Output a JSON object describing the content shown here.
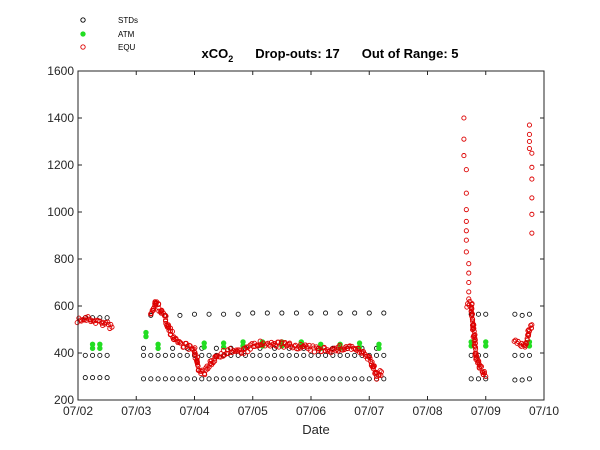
{
  "chart_data": {
    "type": "scatter",
    "title": {
      "main": "xCO",
      "subscript": "2",
      "dropouts_label": "Drop-outs: 17",
      "out_of_range_label": "Out of Range: 5"
    },
    "xlabel": "Date",
    "ylabel": "",
    "xlim": [
      "07/02",
      "07/10"
    ],
    "ylim": [
      200,
      1600
    ],
    "x_ticks": [
      "07/02",
      "07/03",
      "07/04",
      "07/05",
      "07/06",
      "07/07",
      "07/08",
      "07/09",
      "07/10"
    ],
    "y_ticks": [
      200,
      400,
      600,
      800,
      1000,
      1200,
      1400,
      1600
    ],
    "grid": false,
    "legend_position": "top-left",
    "colors": {
      "STDs": "#000000",
      "ATM": "#22dd22",
      "EQU": "#dd0000"
    },
    "series": [
      {
        "name": "STDs",
        "marker": "open-circle",
        "points": [
          [
            "07/02 03:00",
            295
          ],
          [
            "07/02 06:00",
            295
          ],
          [
            "07/02 09:00",
            295
          ],
          [
            "07/02 12:00",
            295
          ],
          [
            "07/02 03:00",
            390
          ],
          [
            "07/02 06:00",
            390
          ],
          [
            "07/02 09:00",
            390
          ],
          [
            "07/02 12:00",
            390
          ],
          [
            "07/02 03:00",
            550
          ],
          [
            "07/02 06:00",
            550
          ],
          [
            "07/02 09:00",
            550
          ],
          [
            "07/02 12:00",
            550
          ],
          [
            "07/03 03:00",
            290
          ],
          [
            "07/03 06:00",
            290
          ],
          [
            "07/03 09:00",
            290
          ],
          [
            "07/03 12:00",
            290
          ],
          [
            "07/03 15:00",
            290
          ],
          [
            "07/03 18:00",
            290
          ],
          [
            "07/03 21:00",
            290
          ],
          [
            "07/04 00:00",
            290
          ],
          [
            "07/04 03:00",
            290
          ],
          [
            "07/04 06:00",
            290
          ],
          [
            "07/04 09:00",
            290
          ],
          [
            "07/04 12:00",
            290
          ],
          [
            "07/04 15:00",
            290
          ],
          [
            "07/04 18:00",
            290
          ],
          [
            "07/04 21:00",
            290
          ],
          [
            "07/05 00:00",
            290
          ],
          [
            "07/05 03:00",
            290
          ],
          [
            "07/05 06:00",
            290
          ],
          [
            "07/05 09:00",
            290
          ],
          [
            "07/05 12:00",
            290
          ],
          [
            "07/05 15:00",
            290
          ],
          [
            "07/05 18:00",
            290
          ],
          [
            "07/05 21:00",
            290
          ],
          [
            "07/06 00:00",
            290
          ],
          [
            "07/06 03:00",
            290
          ],
          [
            "07/06 06:00",
            290
          ],
          [
            "07/06 09:00",
            290
          ],
          [
            "07/06 12:00",
            290
          ],
          [
            "07/06 15:00",
            290
          ],
          [
            "07/06 18:00",
            290
          ],
          [
            "07/06 21:00",
            290
          ],
          [
            "07/07 00:00",
            290
          ],
          [
            "07/07 03:00",
            290
          ],
          [
            "07/07 06:00",
            290
          ],
          [
            "07/03 03:00",
            390
          ],
          [
            "07/03 06:00",
            390
          ],
          [
            "07/03 09:00",
            390
          ],
          [
            "07/03 12:00",
            390
          ],
          [
            "07/03 15:00",
            390
          ],
          [
            "07/03 18:00",
            390
          ],
          [
            "07/03 21:00",
            390
          ],
          [
            "07/04 00:00",
            390
          ],
          [
            "07/04 03:00",
            390
          ],
          [
            "07/04 06:00",
            390
          ],
          [
            "07/04 09:00",
            390
          ],
          [
            "07/04 12:00",
            390
          ],
          [
            "07/04 15:00",
            390
          ],
          [
            "07/04 18:00",
            390
          ],
          [
            "07/04 21:00",
            390
          ],
          [
            "07/05 00:00",
            390
          ],
          [
            "07/05 03:00",
            390
          ],
          [
            "07/05 06:00",
            390
          ],
          [
            "07/05 09:00",
            390
          ],
          [
            "07/05 12:00",
            390
          ],
          [
            "07/05 15:00",
            390
          ],
          [
            "07/05 18:00",
            390
          ],
          [
            "07/05 21:00",
            390
          ],
          [
            "07/06 00:00",
            390
          ],
          [
            "07/06 03:00",
            390
          ],
          [
            "07/06 06:00",
            390
          ],
          [
            "07/06 09:00",
            390
          ],
          [
            "07/06 12:00",
            390
          ],
          [
            "07/06 15:00",
            390
          ],
          [
            "07/06 18:00",
            390
          ],
          [
            "07/06 21:00",
            390
          ],
          [
            "07/07 00:00",
            390
          ],
          [
            "07/07 03:00",
            390
          ],
          [
            "07/07 06:00",
            390
          ],
          [
            "07/03 03:00",
            420
          ],
          [
            "07/03 09:00",
            420
          ],
          [
            "07/03 15:00",
            420
          ],
          [
            "07/03 21:00",
            420
          ],
          [
            "07/04 03:00",
            420
          ],
          [
            "07/04 09:00",
            420
          ],
          [
            "07/04 15:00",
            420
          ],
          [
            "07/04 21:00",
            420
          ],
          [
            "07/05 03:00",
            420
          ],
          [
            "07/05 09:00",
            420
          ],
          [
            "07/05 15:00",
            420
          ],
          [
            "07/05 21:00",
            420
          ],
          [
            "07/06 03:00",
            420
          ],
          [
            "07/06 09:00",
            420
          ],
          [
            "07/06 15:00",
            420
          ],
          [
            "07/06 21:00",
            420
          ],
          [
            "07/07 03:00",
            420
          ],
          [
            "07/03 06:00",
            560
          ],
          [
            "07/03 12:00",
            560
          ],
          [
            "07/03 18:00",
            560
          ],
          [
            "07/04 00:00",
            565
          ],
          [
            "07/04 06:00",
            565
          ],
          [
            "07/04 12:00",
            565
          ],
          [
            "07/04 18:00",
            565
          ],
          [
            "07/05 00:00",
            570
          ],
          [
            "07/05 06:00",
            570
          ],
          [
            "07/05 12:00",
            570
          ],
          [
            "07/05 18:00",
            570
          ],
          [
            "07/06 00:00",
            570
          ],
          [
            "07/06 06:00",
            570
          ],
          [
            "07/06 12:00",
            570
          ],
          [
            "07/06 18:00",
            570
          ],
          [
            "07/07 00:00",
            570
          ],
          [
            "07/07 06:00",
            570
          ],
          [
            "07/08 18:00",
            290
          ],
          [
            "07/08 21:00",
            290
          ],
          [
            "07/09 00:00",
            290
          ],
          [
            "07/09 12:00",
            285
          ],
          [
            "07/09 15:00",
            285
          ],
          [
            "07/09 18:00",
            290
          ],
          [
            "07/08 18:00",
            390
          ],
          [
            "07/08 21:00",
            390
          ],
          [
            "07/09 00:00",
            390
          ],
          [
            "07/09 12:00",
            390
          ],
          [
            "07/09 15:00",
            390
          ],
          [
            "07/09 18:00",
            390
          ],
          [
            "07/08 18:00",
            565
          ],
          [
            "07/08 21:00",
            565
          ],
          [
            "07/09 00:00",
            565
          ],
          [
            "07/09 12:00",
            565
          ],
          [
            "07/09 15:00",
            560
          ],
          [
            "07/09 18:00",
            565
          ]
        ]
      },
      {
        "name": "ATM",
        "marker": "filled-circle",
        "points": [
          [
            "07/02 06:00",
            420
          ],
          [
            "07/02 09:00",
            420
          ],
          [
            "07/03 04:00",
            470
          ],
          [
            "07/03 09:00",
            420
          ],
          [
            "07/04 04:00",
            425
          ],
          [
            "07/04 12:00",
            425
          ],
          [
            "07/04 20:00",
            430
          ],
          [
            "07/05 04:00",
            430
          ],
          [
            "07/05 12:00",
            430
          ],
          [
            "07/05 20:00",
            430
          ],
          [
            "07/06 04:00",
            420
          ],
          [
            "07/06 12:00",
            420
          ],
          [
            "07/06 20:00",
            425
          ],
          [
            "07/07 04:00",
            420
          ],
          [
            "07/08 18:00",
            430
          ],
          [
            "07/09 00:00",
            430
          ],
          [
            "07/09 18:00",
            430
          ]
        ]
      },
      {
        "name": "EQU",
        "marker": "open-circle",
        "segments": [
          [
            [
              "07/02 00:00",
              540
            ],
            [
              "07/02 03:00",
              545
            ],
            [
              "07/02 06:00",
              540
            ],
            [
              "07/02 09:00",
              530
            ],
            [
              "07/02 12:00",
              520
            ],
            [
              "07/02 14:00",
              510
            ]
          ],
          [
            [
              "07/03 06:00",
              560
            ],
            [
              "07/03 08:00",
              620
            ],
            [
              "07/03 10:00",
              580
            ],
            [
              "07/03 12:00",
              550
            ],
            [
              "07/03 15:00",
              470
            ],
            [
              "07/03 18:00",
              440
            ],
            [
              "07/03 21:00",
              430
            ],
            [
              "07/04 00:00",
              410
            ],
            [
              "07/04 02:00",
              320
            ],
            [
              "07/04 04:00",
              320
            ],
            [
              "07/04 06:00",
              340
            ],
            [
              "07/04 09:00",
              390
            ],
            [
              "07/04 12:00",
              400
            ],
            [
              "07/04 15:00",
              410
            ],
            [
              "07/04 18:00",
              405
            ],
            [
              "07/04 21:00",
              410
            ],
            [
              "07/05 00:00",
              430
            ],
            [
              "07/05 03:00",
              440
            ],
            [
              "07/05 06:00",
              430
            ],
            [
              "07/05 09:00",
              440
            ],
            [
              "07/05 12:00",
              435
            ],
            [
              "07/05 15:00",
              430
            ],
            [
              "07/05 18:00",
              430
            ],
            [
              "07/05 21:00",
              425
            ],
            [
              "07/06 00:00",
              420
            ],
            [
              "07/06 03:00",
              410
            ],
            [
              "07/06 06:00",
              420
            ],
            [
              "07/06 09:00",
              410
            ],
            [
              "07/06 12:00",
              420
            ],
            [
              "07/06 15:00",
              425
            ],
            [
              "07/06 18:00",
              420
            ],
            [
              "07/06 21:00",
              400
            ],
            [
              "07/07 00:00",
              380
            ],
            [
              "07/07 03:00",
              300
            ],
            [
              "07/07 05:00",
              320
            ]
          ],
          [
            [
              "07/08 16:00",
              600
            ],
            [
              "07/08 18:00",
              610
            ],
            [
              "07/08 20:00",
              380
            ],
            [
              "07/08 22:00",
              330
            ],
            [
              "07/09 00:00",
              300
            ]
          ],
          [
            [
              "07/09 12:00",
              450
            ],
            [
              "07/09 14:00",
              440
            ],
            [
              "07/09 16:00",
              430
            ],
            [
              "07/09 18:00",
              500
            ],
            [
              "07/09 19:00",
              520
            ]
          ]
        ],
        "scattered": [
          [
            "07/08 15:00",
            1400
          ],
          [
            "07/08 15:00",
            1310
          ],
          [
            "07/08 15:00",
            1240
          ],
          [
            "07/08 16:00",
            1180
          ],
          [
            "07/08 16:00",
            1080
          ],
          [
            "07/08 16:00",
            1010
          ],
          [
            "07/08 16:00",
            960
          ],
          [
            "07/08 16:00",
            920
          ],
          [
            "07/08 16:00",
            880
          ],
          [
            "07/08 16:00",
            830
          ],
          [
            "07/08 17:00",
            780
          ],
          [
            "07/08 17:00",
            740
          ],
          [
            "07/08 17:00",
            700
          ],
          [
            "07/08 17:00",
            660
          ],
          [
            "07/08 17:00",
            630
          ],
          [
            "07/09 18:00",
            1370
          ],
          [
            "07/09 18:00",
            1330
          ],
          [
            "07/09 18:00",
            1300
          ],
          [
            "07/09 18:00",
            1270
          ],
          [
            "07/09 19:00",
            1250
          ],
          [
            "07/09 19:00",
            1190
          ],
          [
            "07/09 19:00",
            1140
          ],
          [
            "07/09 19:00",
            1060
          ],
          [
            "07/09 19:00",
            990
          ],
          [
            "07/09 19:00",
            910
          ]
        ]
      }
    ]
  }
}
